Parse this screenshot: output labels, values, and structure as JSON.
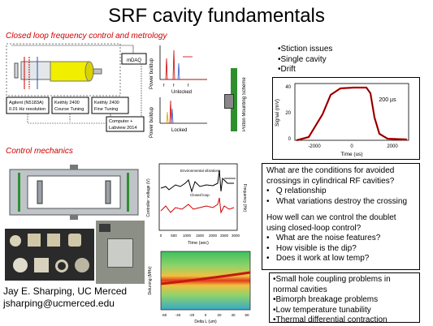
{
  "title": "SRF cavity fundamentals",
  "sections": {
    "closed_loop": "Closed loop frequency control and metrology",
    "mechanics": "Control mechanics"
  },
  "instruments": {
    "mdaq": "mDAQ",
    "agilent": [
      "Agilent (N5183A)",
      "0.01 Hz resolution"
    ],
    "keithly_course": [
      "Keithly 2400",
      "Course Tuning"
    ],
    "keithly_fine": [
      "Keithly 2400",
      "Fine Tuning"
    ],
    "computer": [
      "Computer +",
      "Labview 2014"
    ],
    "piezo_label": "Piezo"
  },
  "doublet_plot": {
    "ylabel": "Power buildup",
    "ticks_top": [
      "f",
      "f",
      "f"
    ],
    "unlocked": "Unlocked",
    "locked": "Locked",
    "ticks_bottom": "f"
  },
  "mount_label": "Piston Mounting Scheme",
  "top_bullets": [
    "•Stiction issues",
    "•Single cavity",
    "•Drift"
  ],
  "signal_plot": {
    "annotation": "200 µs",
    "ylabel": "Signal (mV)",
    "xlabel": "Time (us)",
    "yticks": [
      "40",
      "20",
      "0"
    ],
    "xticks": [
      "-2000",
      "0",
      "2000"
    ]
  },
  "controller_plot": {
    "ylabel": "Controller voltage (V)",
    "y2label": "Frequency (Hz)",
    "xlabel": "Time (sec)",
    "env_label": "Environmental vibrations",
    "loop_label": "Closed loop",
    "xticks": [
      "0",
      "500",
      "1000",
      "1500",
      "2000",
      "2500",
      "3000"
    ]
  },
  "heatmap": {
    "ylabel": "Detuning (MHz)",
    "xlabel": "Delta L (um)",
    "xticks": [
      "-60",
      "-40",
      "-20",
      "0",
      "20",
      "40",
      "60"
    ]
  },
  "questions": [
    {
      "text": "What are the conditions for avoided crossings in cylindrical RF cavities?",
      "bullets": [
        "Q relationship",
        "What variations destroy the crossing"
      ]
    },
    {
      "text": "How well can we control the doublet using closed-loop control?",
      "bullets": [
        "What are the noise features?",
        "How visible is the dip?",
        "Does it work at low temp?"
      ]
    }
  ],
  "bottom_bullets": [
    "•Small hole coupling problems in normal cavities",
    "•Bimorph breakage problems",
    "•Low temperature tunability",
    "•Thermal differential contraction"
  ],
  "author": "Jay E. Sharping, UC Merced",
  "email": "jsharping@ucmerced.edu"
}
